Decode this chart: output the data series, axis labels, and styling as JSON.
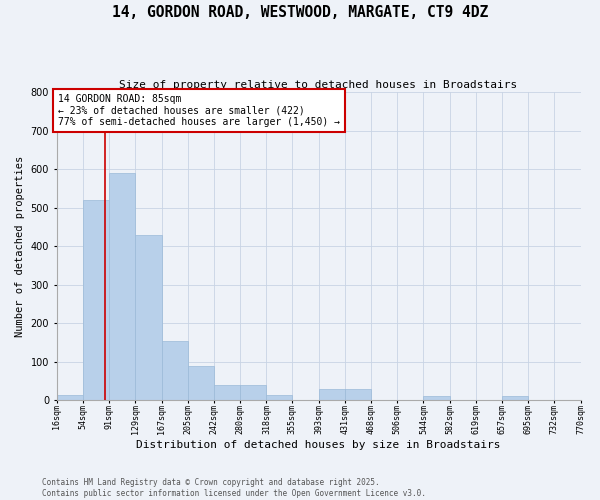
{
  "title": "14, GORDON ROAD, WESTWOOD, MARGATE, CT9 4DZ",
  "subtitle": "Size of property relative to detached houses in Broadstairs",
  "xlabel": "Distribution of detached houses by size in Broadstairs",
  "ylabel": "Number of detached properties",
  "bin_edges": [
    16,
    54,
    91,
    129,
    167,
    205,
    242,
    280,
    318,
    355,
    393,
    431,
    468,
    506,
    544,
    582,
    619,
    657,
    695,
    732,
    770
  ],
  "bar_heights": [
    15,
    520,
    590,
    430,
    155,
    90,
    40,
    40,
    15,
    0,
    30,
    30,
    0,
    0,
    10,
    0,
    0,
    10,
    0,
    0
  ],
  "bar_color": "#b8d0ea",
  "bar_edge_color": "#9bbad8",
  "bg_color": "#eef2f8",
  "grid_color": "#c8d4e4",
  "property_line_x": 85,
  "property_line_color": "#cc0000",
  "annotation_text": "14 GORDON ROAD: 85sqm\n← 23% of detached houses are smaller (422)\n77% of semi-detached houses are larger (1,450) →",
  "annotation_box_color": "#ffffff",
  "annotation_border_color": "#cc0000",
  "ylim": [
    0,
    800
  ],
  "yticks": [
    0,
    100,
    200,
    300,
    400,
    500,
    600,
    700,
    800
  ],
  "footer_text": "Contains HM Land Registry data © Crown copyright and database right 2025.\nContains public sector information licensed under the Open Government Licence v3.0.",
  "tick_labels": [
    "16sqm",
    "54sqm",
    "91sqm",
    "129sqm",
    "167sqm",
    "205sqm",
    "242sqm",
    "280sqm",
    "318sqm",
    "355sqm",
    "393sqm",
    "431sqm",
    "468sqm",
    "506sqm",
    "544sqm",
    "582sqm",
    "619sqm",
    "657sqm",
    "695sqm",
    "732sqm",
    "770sqm"
  ],
  "title_fontsize": 10.5,
  "subtitle_fontsize": 8,
  "xlabel_fontsize": 8,
  "ylabel_fontsize": 7.5,
  "tick_fontsize": 6,
  "ytick_fontsize": 7,
  "annotation_fontsize": 7,
  "footer_fontsize": 5.5
}
